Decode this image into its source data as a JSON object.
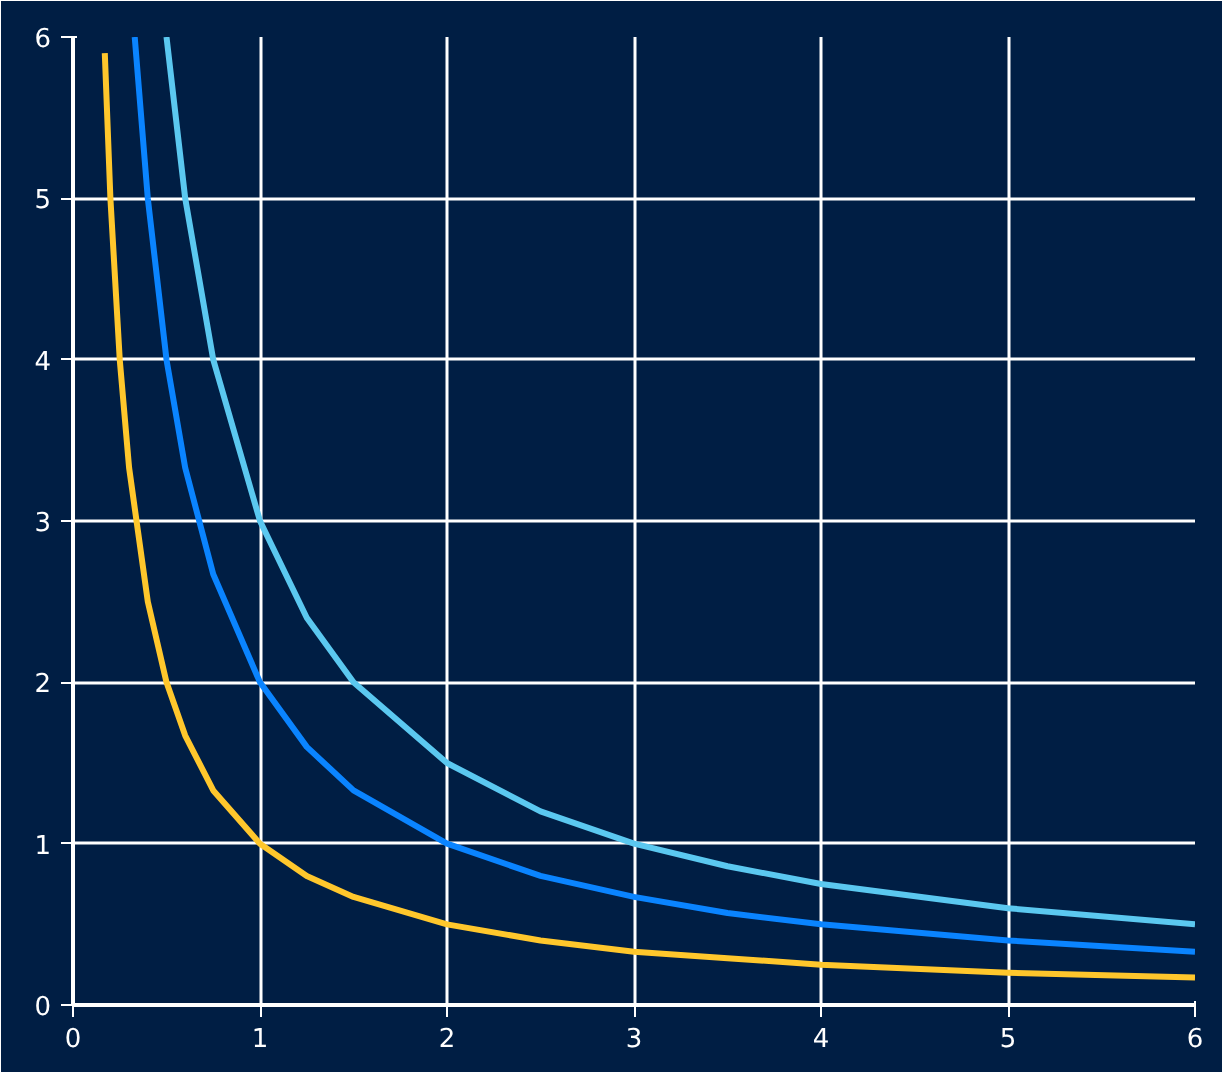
{
  "chart_data": {
    "type": "line",
    "xlim": [
      0,
      6
    ],
    "ylim": [
      0,
      6
    ],
    "xticks": [
      0,
      1,
      2,
      3,
      4,
      5,
      6
    ],
    "yticks": [
      0,
      1,
      2,
      3,
      4,
      5,
      6
    ],
    "grid": true,
    "line_style": "solid",
    "series": [
      {
        "color": "#ffc72c",
        "x": [
          0.17,
          0.2,
          0.25,
          0.3,
          0.4,
          0.5,
          0.6,
          0.75,
          1,
          1.25,
          1.5,
          2,
          2.5,
          3,
          3.5,
          4,
          5,
          6
        ],
        "values": [
          5.9,
          5.0,
          4.0,
          3.33,
          2.5,
          2.0,
          1.67,
          1.33,
          1.0,
          0.8,
          0.67,
          0.5,
          0.4,
          0.33,
          0.29,
          0.25,
          0.2,
          0.17
        ]
      },
      {
        "color": "#0a84ff",
        "x": [
          0.33,
          0.4,
          0.5,
          0.6,
          0.75,
          1,
          1.25,
          1.5,
          2,
          2.5,
          3,
          3.5,
          4,
          5,
          6
        ],
        "values": [
          6.0,
          5.0,
          4.0,
          3.33,
          2.67,
          2.0,
          1.6,
          1.33,
          1.0,
          0.8,
          0.67,
          0.57,
          0.5,
          0.4,
          0.33
        ]
      },
      {
        "color": "#5bc8f0",
        "x": [
          0.5,
          0.6,
          0.75,
          1,
          1.25,
          1.5,
          2,
          2.5,
          3,
          3.5,
          4,
          5,
          6
        ],
        "values": [
          6.0,
          5.0,
          4.0,
          3.0,
          2.4,
          2.0,
          1.5,
          1.2,
          1.0,
          0.86,
          0.75,
          0.6,
          0.5
        ]
      }
    ]
  }
}
